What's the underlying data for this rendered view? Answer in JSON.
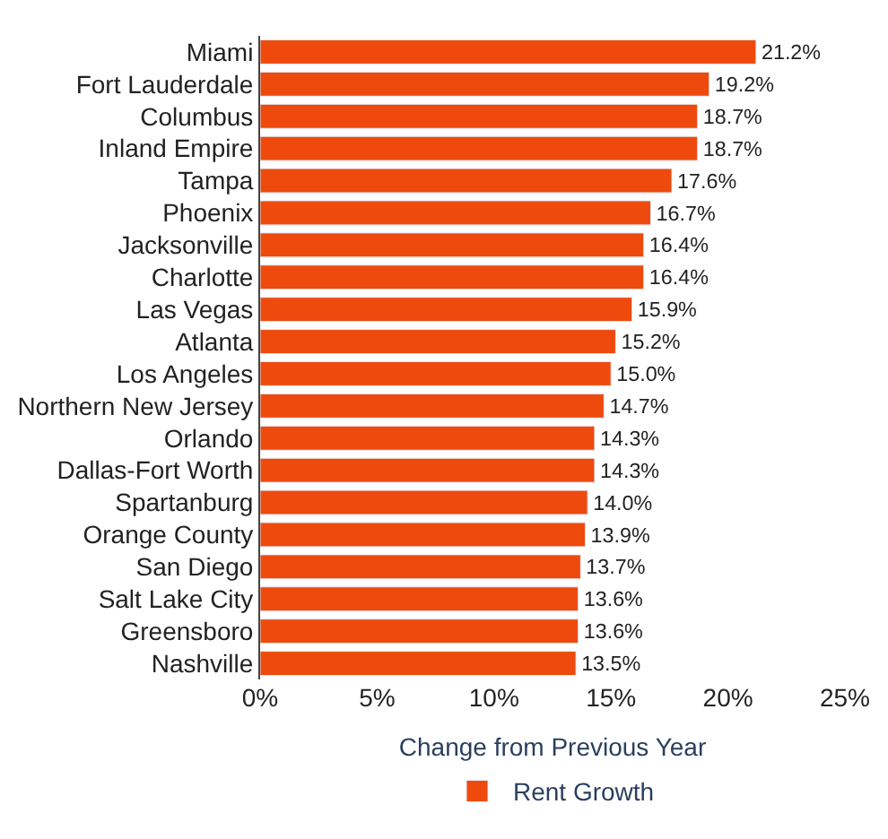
{
  "chart_data": {
    "type": "bar",
    "orientation": "horizontal",
    "xlabel": "Change from Previous Year",
    "categories": [
      "Miami",
      "Fort Lauderdale",
      "Columbus",
      "Inland Empire",
      "Tampa",
      "Phoenix",
      "Jacksonville",
      "Charlotte",
      "Las Vegas",
      "Atlanta",
      "Los Angeles",
      "Northern New Jersey",
      "Orlando",
      "Dallas-Fort Worth",
      "Spartanburg",
      "Orange County",
      "San Diego",
      "Salt Lake City",
      "Greensboro",
      "Nashville"
    ],
    "series": [
      {
        "name": "Rent Growth",
        "color": "#ee4a0e",
        "values": [
          21.2,
          19.2,
          18.7,
          18.7,
          17.6,
          16.7,
          16.4,
          16.4,
          15.9,
          15.2,
          15.0,
          14.7,
          14.3,
          14.3,
          14.0,
          13.9,
          13.7,
          13.6,
          13.6,
          13.5
        ],
        "value_labels": [
          "21.2%",
          "19.2%",
          "18.7%",
          "18.7%",
          "17.6%",
          "16.7%",
          "16.4%",
          "16.4%",
          "15.9%",
          "15.2%",
          "15.0%",
          "14.7%",
          "14.3%",
          "14.3%",
          "14.0%",
          "13.9%",
          "13.7%",
          "13.6%",
          "13.6%",
          "13.5%"
        ]
      }
    ],
    "xlim": [
      0,
      25
    ],
    "xticks": [
      {
        "value": 0,
        "label": "0%"
      },
      {
        "value": 5,
        "label": "5%"
      },
      {
        "value": 10,
        "label": "10%"
      },
      {
        "value": 15,
        "label": "15%"
      },
      {
        "value": 20,
        "label": "20%"
      },
      {
        "value": 25,
        "label": "25%"
      }
    ],
    "legend": "bottom"
  }
}
